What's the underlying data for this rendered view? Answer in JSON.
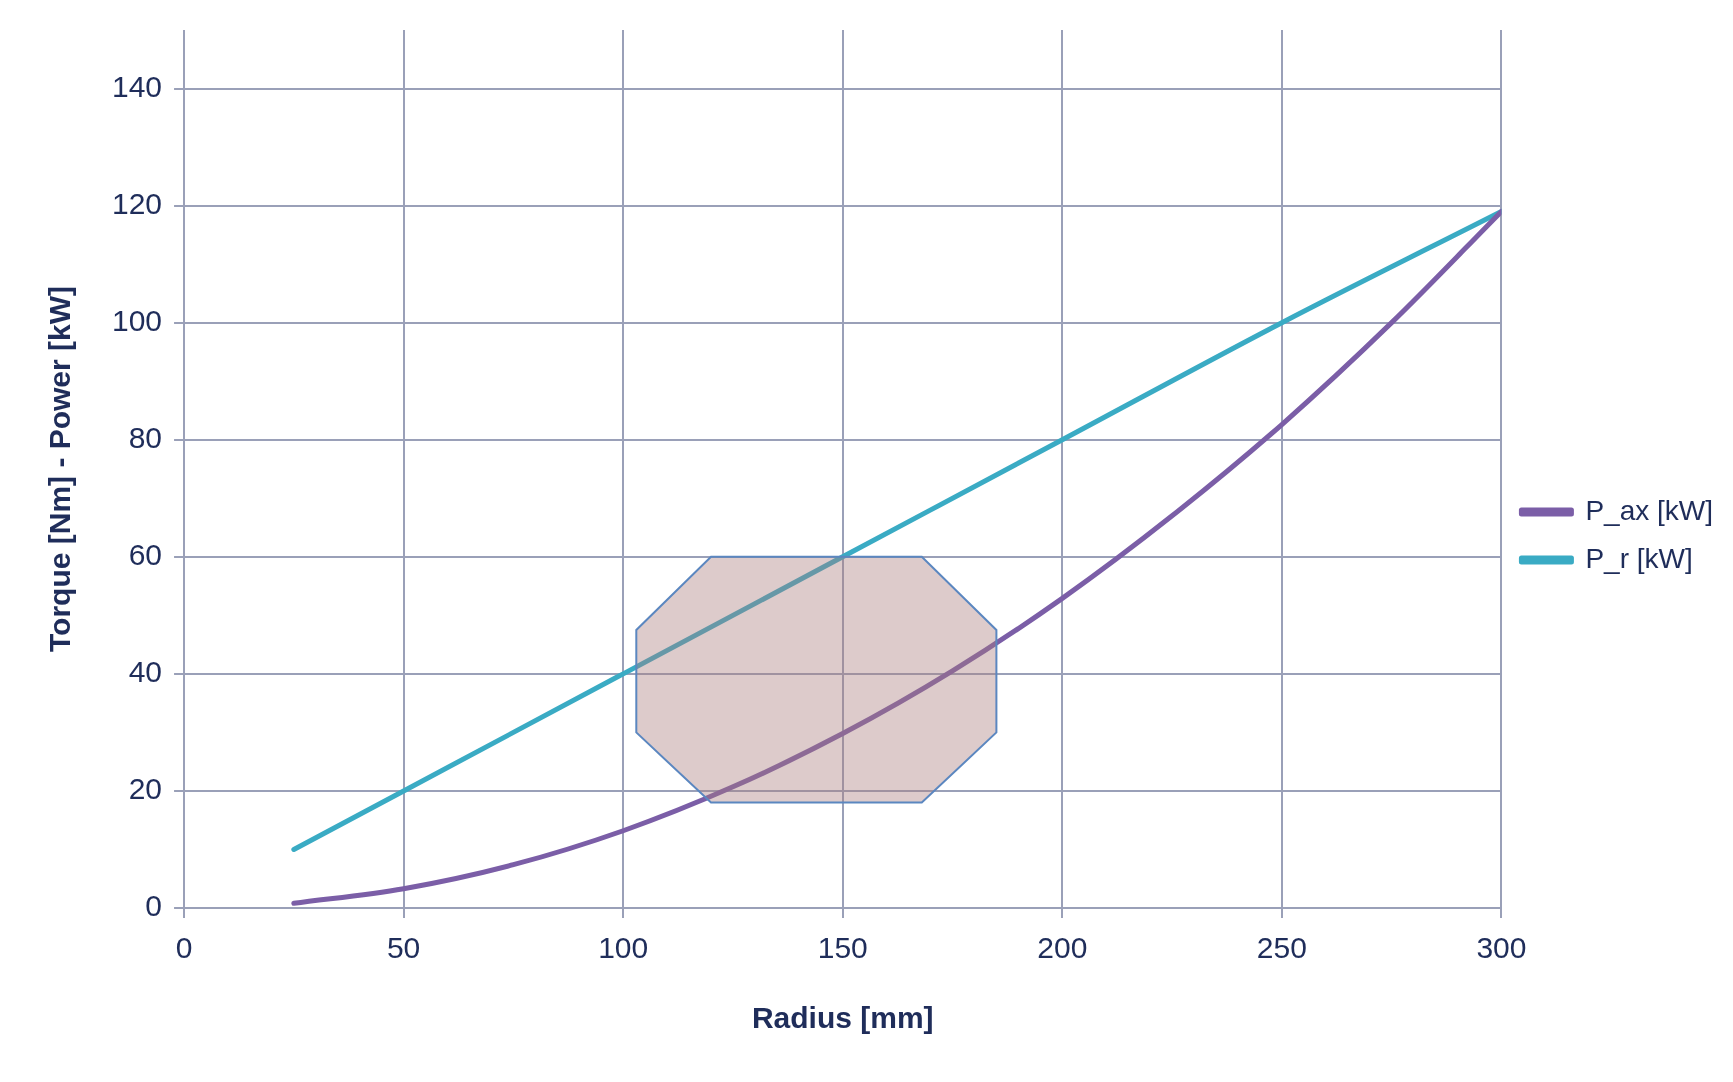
{
  "chart_data": {
    "type": "line",
    "xlabel": "Radius [mm]",
    "ylabel": "Torque [Nm] - Power [kW]",
    "xlim": [
      0,
      300
    ],
    "xticks": [
      0,
      50,
      100,
      150,
      200,
      250,
      300
    ],
    "ylim": [
      0,
      150
    ],
    "yticks": [
      0,
      20,
      40,
      60,
      80,
      100,
      120,
      140
    ],
    "grid": true,
    "legend": "right",
    "marker": "none",
    "line_style": "solid",
    "series": [
      {
        "name": "P_ax [kW]",
        "color": "#7b5ea7",
        "x": [
          25,
          50,
          75,
          100,
          125,
          150,
          175,
          200,
          225,
          250,
          275,
          300
        ],
        "values": [
          0.8,
          3.3,
          7.4,
          13.2,
          20.7,
          29.8,
          40.5,
          52.9,
          67,
          82.6,
          100,
          119
        ]
      },
      {
        "name": "P_r [kW]",
        "color": "#3aabc4",
        "x": [
          25,
          50,
          100,
          150,
          200,
          250,
          300
        ],
        "values": [
          10,
          20,
          40,
          60,
          80,
          100,
          119
        ]
      }
    ]
  }
}
